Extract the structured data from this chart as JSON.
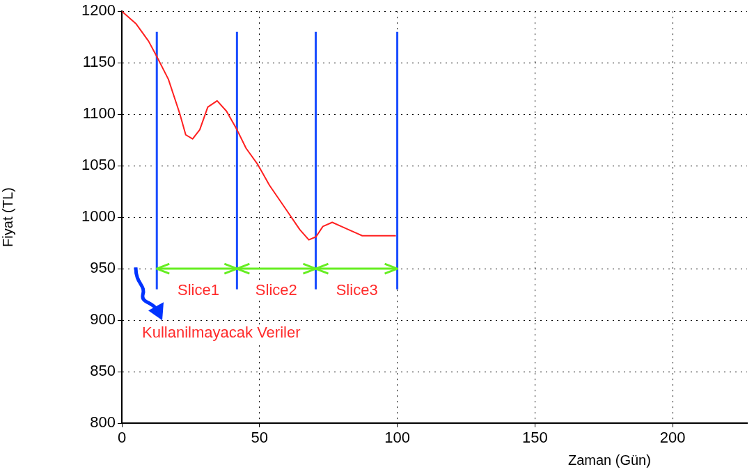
{
  "chart_data": {
    "type": "line",
    "xlabel": "Zaman (Gün)",
    "ylabel": "Fiyat (TL)",
    "xlim": [
      0,
      227
    ],
    "xticks": [
      0,
      50,
      100,
      150,
      200
    ],
    "ylim": [
      800,
      1200
    ],
    "yticks": [
      800,
      850,
      900,
      950,
      1000,
      1050,
      1100,
      1150,
      1200
    ],
    "grid": true,
    "legend": false,
    "marker": "none",
    "line_style": "solid",
    "series": [
      {
        "color": "#ff2020",
        "x": [
          0,
          5.1,
          9.7,
          12.7,
          16.9,
          21.1,
          23.2,
          25.7,
          28.3,
          31.2,
          34.6,
          38,
          41.8,
          45.1,
          49.4,
          53.6,
          59.5,
          64.6,
          67.9,
          70.5,
          73,
          76.4,
          79.7,
          83.1,
          87.3,
          97.5,
          99.5
        ],
        "values": [
          1200,
          1188,
          1171,
          1156,
          1134,
          1100,
          1080,
          1076,
          1085,
          1107,
          1113,
          1103,
          1085,
          1067,
          1051,
          1031,
          1008,
          988,
          978,
          981,
          991,
          995,
          991,
          987,
          982,
          982,
          982
        ]
      },
      {
        "color": "#1a4dff",
        "x": [
          12.7,
          12.7
        ],
        "values": [
          930,
          1180
        ]
      },
      {
        "color": "#1a4dff",
        "x": [
          41.8,
          41.8
        ],
        "values": [
          930,
          1180
        ]
      },
      {
        "color": "#1a4dff",
        "x": [
          70.4,
          70.4
        ],
        "values": [
          930,
          1180
        ]
      },
      {
        "color": "#1a4dff",
        "x": [
          100,
          100
        ],
        "values": [
          930,
          1180
        ]
      },
      {
        "color": "#66ee22",
        "x": [
          12.7,
          41.8
        ],
        "values": [
          950,
          950
        ]
      },
      {
        "color": "#66ee22",
        "x": [
          41.8,
          70.4
        ],
        "values": [
          950,
          950
        ]
      },
      {
        "color": "#66ee22",
        "x": [
          70.4,
          100
        ],
        "values": [
          950,
          950
        ]
      }
    ],
    "annotations": [
      "Slice1",
      "Slice2",
      "Slice3",
      "Kullanilmayacak Veriler"
    ]
  }
}
